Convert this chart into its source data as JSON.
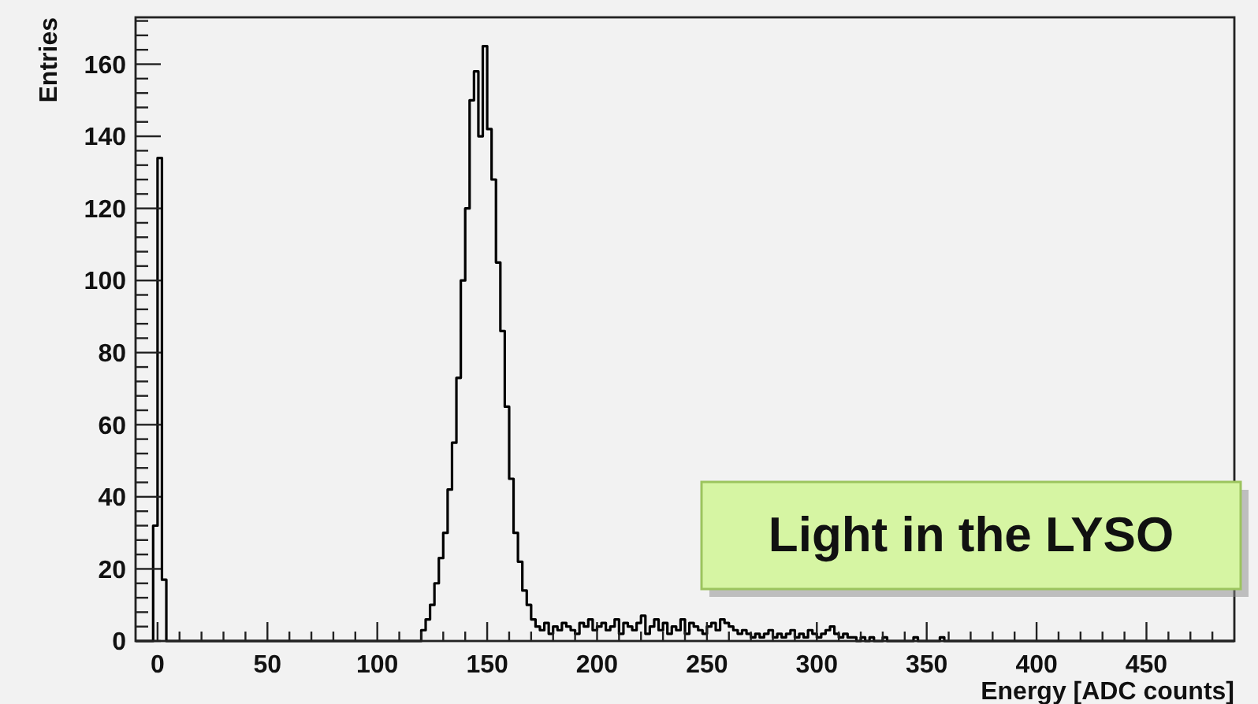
{
  "chart_data": {
    "type": "histogram",
    "xlabel": "Energy [ADC counts]",
    "ylabel": "Entries",
    "bins": [
      -10,
      -2,
      0,
      2,
      4,
      118,
      120,
      122,
      124,
      126,
      128,
      130,
      132,
      134,
      136,
      138,
      140,
      142,
      144,
      146,
      148,
      150,
      152,
      154,
      156,
      158,
      160,
      162,
      164,
      166,
      168,
      170,
      172,
      174,
      176,
      178,
      180,
      182,
      184,
      186,
      188,
      190,
      192,
      194,
      196,
      198,
      200,
      202,
      204,
      206,
      208,
      210,
      212,
      214,
      216,
      218,
      220,
      222,
      224,
      226,
      228,
      230,
      232,
      234,
      236,
      238,
      240,
      242,
      244,
      246,
      248,
      250,
      252,
      254,
      256,
      258,
      260,
      262,
      264,
      266,
      268,
      270,
      272,
      274,
      276,
      278,
      280,
      282,
      284,
      286,
      288,
      290,
      292,
      294,
      296,
      298,
      300,
      302,
      304,
      306,
      308,
      310,
      312,
      314,
      316,
      318,
      320,
      322,
      324,
      326,
      328,
      330,
      332,
      334,
      336,
      338,
      340,
      342,
      344,
      346,
      348,
      350,
      352,
      354,
      356,
      358,
      360,
      362,
      364,
      366,
      368,
      370,
      490
    ],
    "values": [
      0,
      32,
      134,
      17,
      0,
      0,
      3,
      6,
      10,
      16,
      23,
      30,
      42,
      55,
      73,
      100,
      120,
      150,
      158,
      140,
      165,
      142,
      128,
      105,
      86,
      65,
      45,
      30,
      22,
      14,
      10,
      6,
      4,
      3,
      5,
      2,
      4,
      3,
      5,
      4,
      3,
      2,
      5,
      4,
      6,
      3,
      4,
      5,
      3,
      4,
      6,
      2,
      5,
      4,
      3,
      5,
      7,
      2,
      4,
      6,
      3,
      5,
      2,
      4,
      3,
      6,
      2,
      5,
      4,
      3,
      2,
      4,
      5,
      3,
      6,
      5,
      4,
      3,
      2,
      3,
      2,
      1,
      2,
      1,
      2,
      3,
      1,
      2,
      1,
      2,
      3,
      1,
      2,
      1,
      3,
      2,
      1,
      2,
      3,
      4,
      2,
      1,
      2,
      1,
      1,
      0,
      1,
      0,
      1,
      0,
      0,
      1,
      0,
      0,
      0,
      0,
      0,
      0,
      1,
      0,
      0,
      0,
      0,
      0,
      1,
      0,
      0,
      0,
      0,
      0,
      0,
      0
    ],
    "color": "#000000",
    "xlim": [
      -10,
      490
    ],
    "ylim": [
      0,
      173
    ],
    "xticks": [
      0,
      {
        "value": 10,
        "label": null
      },
      {
        "value": 20,
        "label": null
      },
      {
        "value": 30,
        "label": null
      },
      {
        "value": 40,
        "label": null
      },
      50,
      {
        "value": 60,
        "label": null
      },
      {
        "value": 70,
        "label": null
      },
      {
        "value": 80,
        "label": null
      },
      {
        "value": 90,
        "label": null
      },
      100,
      {
        "value": 110,
        "label": null
      },
      {
        "value": 120,
        "label": null
      },
      {
        "value": 130,
        "label": null
      },
      {
        "value": 140,
        "label": null
      },
      150,
      {
        "value": 160,
        "label": null
      },
      {
        "value": 170,
        "label": null
      },
      {
        "value": 180,
        "label": null
      },
      {
        "value": 190,
        "label": null
      },
      200,
      {
        "value": 210,
        "label": null
      },
      {
        "value": 220,
        "label": null
      },
      {
        "value": 230,
        "label": null
      },
      {
        "value": 240,
        "label": null
      },
      250,
      {
        "value": 260,
        "label": null
      },
      {
        "value": 270,
        "label": null
      },
      {
        "value": 280,
        "label": null
      },
      {
        "value": 290,
        "label": null
      },
      300,
      {
        "value": 310,
        "label": null
      },
      {
        "value": 320,
        "label": null
      },
      {
        "value": 330,
        "label": null
      },
      {
        "value": 340,
        "label": null
      },
      350,
      {
        "value": 360,
        "label": null
      },
      {
        "value": 370,
        "label": null
      },
      {
        "value": 380,
        "label": null
      },
      {
        "value": 390,
        "label": null
      },
      400,
      {
        "value": 410,
        "label": null
      },
      {
        "value": 420,
        "label": null
      },
      {
        "value": 430,
        "label": null
      },
      {
        "value": 440,
        "label": null
      },
      450,
      {
        "value": 460,
        "label": null
      },
      {
        "value": 470,
        "label": null
      },
      {
        "value": 480,
        "label": null
      }
    ],
    "yticks": [
      0,
      {
        "value": 4,
        "label": null
      },
      {
        "value": 8,
        "label": null
      },
      {
        "value": 12,
        "label": null
      },
      {
        "value": 16,
        "label": null
      },
      20,
      {
        "value": 24,
        "label": null
      },
      {
        "value": 28,
        "label": null
      },
      {
        "value": 32,
        "label": null
      },
      {
        "value": 36,
        "label": null
      },
      40,
      {
        "value": 44,
        "label": null
      },
      {
        "value": 48,
        "label": null
      },
      {
        "value": 52,
        "label": null
      },
      {
        "value": 56,
        "label": null
      },
      60,
      {
        "value": 64,
        "label": null
      },
      {
        "value": 68,
        "label": null
      },
      {
        "value": 72,
        "label": null
      },
      {
        "value": 76,
        "label": null
      },
      80,
      {
        "value": 84,
        "label": null
      },
      {
        "value": 88,
        "label": null
      },
      {
        "value": 92,
        "label": null
      },
      {
        "value": 96,
        "label": null
      },
      100,
      {
        "value": 104,
        "label": null
      },
      {
        "value": 108,
        "label": null
      },
      {
        "value": 112,
        "label": null
      },
      {
        "value": 116,
        "label": null
      },
      120,
      {
        "value": 124,
        "label": null
      },
      {
        "value": 128,
        "label": null
      },
      {
        "value": 132,
        "label": null
      },
      {
        "value": 136,
        "label": null
      },
      140,
      {
        "value": 144,
        "label": null
      },
      {
        "value": 148,
        "label": null
      },
      {
        "value": 152,
        "label": null
      },
      {
        "value": 156,
        "label": null
      },
      160,
      {
        "value": 164,
        "label": null
      },
      {
        "value": 168,
        "label": null
      },
      {
        "value": 172,
        "label": null
      }
    ],
    "annotations": [
      "Light in the LYSO"
    ]
  }
}
